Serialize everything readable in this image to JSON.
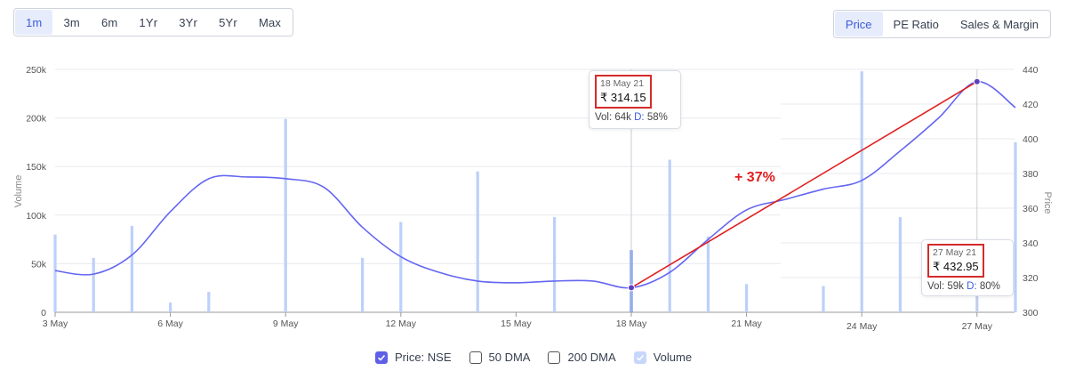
{
  "range_tabs": [
    {
      "label": "1m",
      "active": true
    },
    {
      "label": "3m",
      "active": false
    },
    {
      "label": "6m",
      "active": false
    },
    {
      "label": "1Yr",
      "active": false
    },
    {
      "label": "3Yr",
      "active": false
    },
    {
      "label": "5Yr",
      "active": false
    },
    {
      "label": "Max",
      "active": false
    }
  ],
  "view_tabs": [
    {
      "label": "Price",
      "active": true
    },
    {
      "label": "PE Ratio",
      "active": false
    },
    {
      "label": "Sales & Margin",
      "active": false
    }
  ],
  "tooltips": {
    "start": {
      "date": "18 May 21",
      "price": "₹ 314.15",
      "vol_prefix": "Vol: 64k ",
      "d_label": "D:",
      "d_value": " 58%"
    },
    "end": {
      "date": "27 May 21",
      "price": "₹ 432.95",
      "vol_prefix": "Vol: 59k ",
      "d_label": "D:",
      "d_value": " 80%"
    }
  },
  "change_annotation": "+ 37%",
  "legend": [
    {
      "label": "Price: NSE",
      "state": "checked"
    },
    {
      "label": "50 DMA",
      "state": "unchecked"
    },
    {
      "label": "200 DMA",
      "state": "unchecked"
    },
    {
      "label": "Volume",
      "state": "light"
    }
  ],
  "colors": {
    "price_line": "#6466f1",
    "volume_bar": "#bcd0fa",
    "highlight_bar": "#6c8ef5",
    "annotation": "#e02020"
  },
  "chart_data": {
    "type": "line",
    "x_axis": {
      "ticks": [
        "3 May",
        "6 May",
        "9 May",
        "12 May",
        "15 May",
        "18 May",
        "21 May",
        "24 May",
        "27 May"
      ],
      "range": [
        "3 May",
        "28 May"
      ]
    },
    "y_left": {
      "title": "Volume",
      "ticks": [
        "0",
        "50k",
        "100k",
        "150k",
        "200k",
        "250k"
      ],
      "range": [
        0,
        250000
      ]
    },
    "y_right": {
      "title": "Price",
      "ticks": [
        "300",
        "320",
        "340",
        "360",
        "380",
        "400",
        "420",
        "440"
      ],
      "range": [
        300,
        440
      ]
    },
    "price_series": {
      "name": "Price: NSE",
      "points": [
        {
          "x": "3 May",
          "y": 324
        },
        {
          "x": "4 May",
          "y": 322
        },
        {
          "x": "5 May",
          "y": 333
        },
        {
          "x": "6 May",
          "y": 358
        },
        {
          "x": "7 May",
          "y": 377
        },
        {
          "x": "8 May",
          "y": 378
        },
        {
          "x": "9 May",
          "y": 377
        },
        {
          "x": "10 May",
          "y": 372
        },
        {
          "x": "11 May",
          "y": 349
        },
        {
          "x": "12 May",
          "y": 332
        },
        {
          "x": "13 May",
          "y": 323
        },
        {
          "x": "14 May",
          "y": 318
        },
        {
          "x": "15 May",
          "y": 317
        },
        {
          "x": "16 May",
          "y": 318
        },
        {
          "x": "17 May",
          "y": 318
        },
        {
          "x": "18 May",
          "y": 314.15
        },
        {
          "x": "19 May",
          "y": 323
        },
        {
          "x": "20 May",
          "y": 342
        },
        {
          "x": "21 May",
          "y": 359
        },
        {
          "x": "22 May",
          "y": 365
        },
        {
          "x": "23 May",
          "y": 371
        },
        {
          "x": "24 May",
          "y": 376
        },
        {
          "x": "25 May",
          "y": 393
        },
        {
          "x": "26 May",
          "y": 412
        },
        {
          "x": "27 May",
          "y": 432.95
        },
        {
          "x": "28 May",
          "y": 418
        }
      ]
    },
    "volume_series": {
      "name": "Volume",
      "bars": [
        {
          "x": "3 May",
          "y": 80000
        },
        {
          "x": "4 May",
          "y": 56000
        },
        {
          "x": "5 May",
          "y": 89000
        },
        {
          "x": "6 May",
          "y": 10000
        },
        {
          "x": "7 May",
          "y": 21000
        },
        {
          "x": "9 May",
          "y": 199000
        },
        {
          "x": "11 May",
          "y": 56000
        },
        {
          "x": "12 May",
          "y": 93000
        },
        {
          "x": "14 May",
          "y": 145000
        },
        {
          "x": "16 May",
          "y": 98000
        },
        {
          "x": "18 May",
          "y": 64000,
          "highlight": true
        },
        {
          "x": "19 May",
          "y": 157000
        },
        {
          "x": "20 May",
          "y": 78000
        },
        {
          "x": "21 May",
          "y": 29000
        },
        {
          "x": "23 May",
          "y": 27000
        },
        {
          "x": "24 May",
          "y": 248000
        },
        {
          "x": "25 May",
          "y": 98000
        },
        {
          "x": "27 May",
          "y": 59000
        },
        {
          "x": "28 May",
          "y": 175000
        }
      ]
    },
    "highlight_points": [
      {
        "x": "18 May",
        "y": 314.15
      },
      {
        "x": "27 May",
        "y": 432.95
      }
    ]
  }
}
